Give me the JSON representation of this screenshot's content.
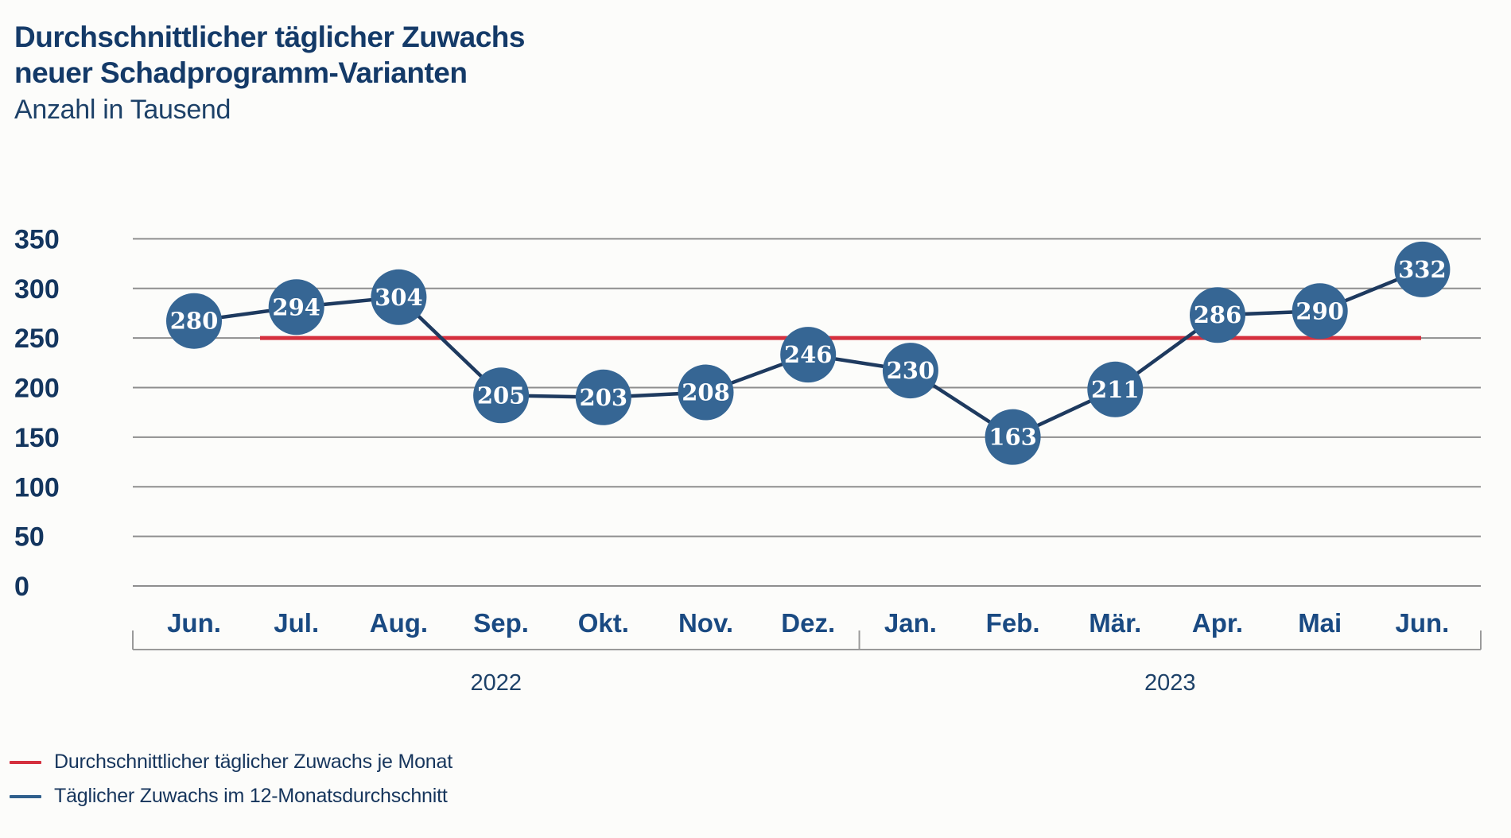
{
  "header": {
    "title_line1": "Durchschnittlicher täglicher Zuwachs",
    "title_line2": "neuer Schadprogramm-Varianten",
    "subtitle": "Anzahl in Tausend"
  },
  "chart_data": {
    "type": "line",
    "title": "Durchschnittlicher täglicher Zuwachs neuer Schadprogramm-Varianten",
    "subtitle": "Anzahl in Tausend",
    "unit": "Tausend",
    "categories": [
      "Jun.",
      "Jul.",
      "Aug.",
      "Sep.",
      "Okt.",
      "Nov.",
      "Dez.",
      "Jan.",
      "Feb.",
      "Mär.",
      "Apr.",
      "Mai",
      "Jun."
    ],
    "values": [
      280,
      294,
      304,
      205,
      203,
      208,
      246,
      230,
      163,
      211,
      286,
      290,
      332
    ],
    "point_labels": [
      "280",
      "294",
      "304",
      "205",
      "203",
      "208",
      "246",
      "230",
      "163",
      "211",
      "286",
      "290",
      "332"
    ],
    "year_groups": [
      {
        "label": "2022",
        "months": 7
      },
      {
        "label": "2023",
        "months": 6
      }
    ],
    "y_ticks": [
      0,
      50,
      100,
      150,
      200,
      250,
      300,
      350
    ],
    "ylim": [
      0,
      350
    ],
    "average_line_value": 250,
    "grid": true,
    "legend_position": "bottom-left",
    "legend": [
      {
        "label": "Durchschnittlicher täglicher Zuwachs je Monat",
        "color": "#d5303e",
        "series": "average-per-month"
      },
      {
        "label": "Täglicher Zuwachs im 12-Monatsdurchschnitt",
        "color": "#2f5f8c",
        "series": "12-month-average"
      }
    ],
    "colors": {
      "point_fill": "#366694",
      "point_text": "#ffffff",
      "trend_line": "#1e3a5f",
      "average_line": "#d5303e",
      "gridline": "#8e8e8e",
      "axis_bracket": "#9a9a9a",
      "axis_text": "#14365f",
      "month_text": "#1a4a82",
      "year_text": "#1d4168"
    }
  }
}
